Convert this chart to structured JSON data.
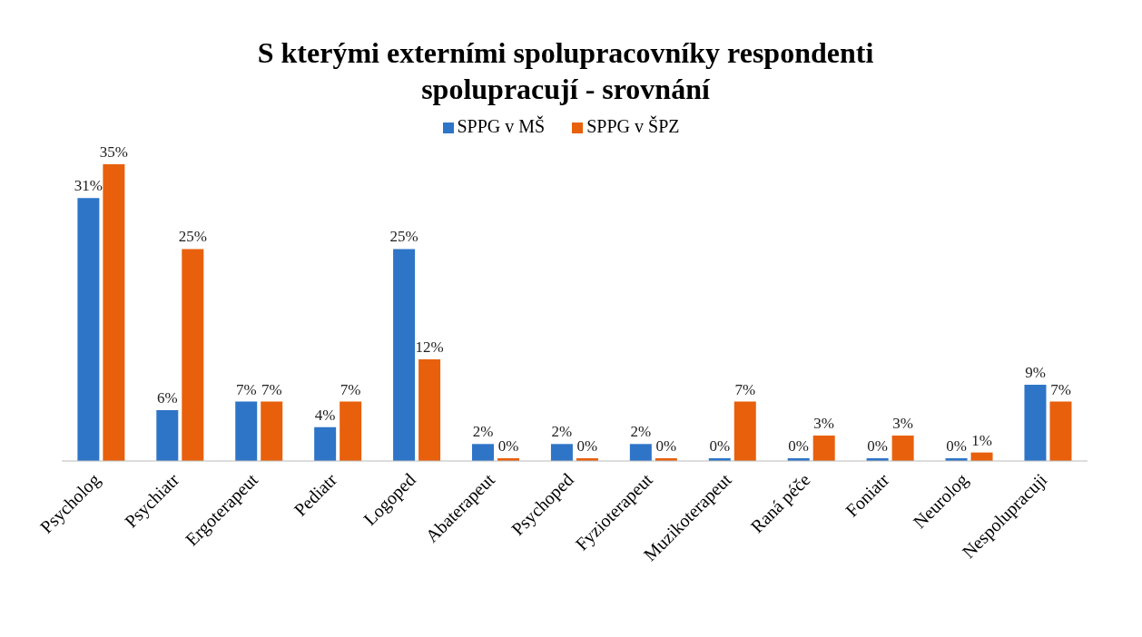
{
  "chart_data": {
    "type": "bar",
    "title": "S kterými externími spolupracovníky respondenti spolupracují - srovnání",
    "categories": [
      "Psycholog",
      "Psychiatr",
      "Ergoterapeut",
      "Pediatr",
      "Logoped",
      "Abaterapeut",
      "Psychoped",
      "Fyzioterapeut",
      "Muzikoterapeut",
      "Raná péče",
      "Foniatr",
      "Neurolog",
      "Nespolupracuji"
    ],
    "series": [
      {
        "name": "SPPG v MŠ",
        "color": "#2e75c8",
        "values": [
          31,
          6,
          7,
          4,
          25,
          2,
          2,
          2,
          0,
          0,
          0,
          0,
          9
        ],
        "value_labels": [
          "31%",
          "6%",
          "7%",
          "4%",
          "25%",
          "2%",
          "2%",
          "2%",
          "0%",
          "0%",
          "0%",
          "0%",
          "9%"
        ]
      },
      {
        "name": "SPPG v ŠPZ",
        "color": "#e8600c",
        "values": [
          35,
          25,
          7,
          7,
          12,
          0,
          0,
          0,
          7,
          3,
          3,
          1,
          7
        ],
        "value_labels": [
          "35%",
          "25%",
          "7%",
          "7%",
          "12%",
          "0%",
          "0%",
          "0%",
          "7%",
          "3%",
          "3%",
          "1%",
          "7%"
        ]
      }
    ],
    "legend": "top",
    "grid": false
  }
}
